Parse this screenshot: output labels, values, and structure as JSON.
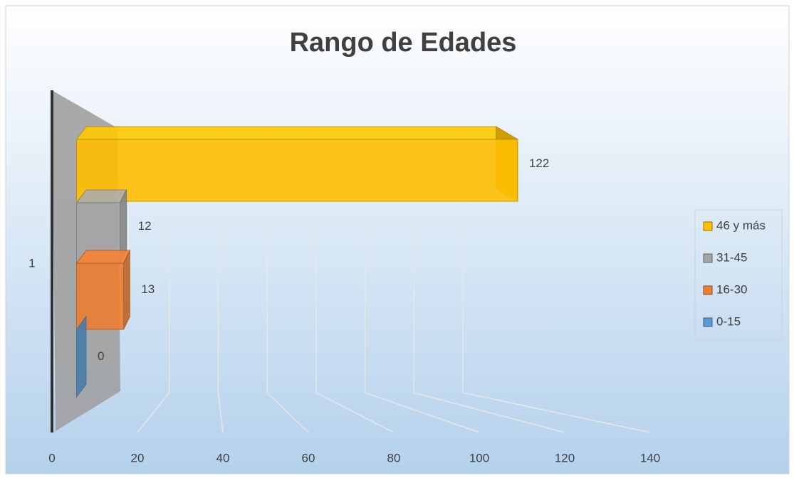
{
  "chart_data": {
    "type": "bar3d_horizontal",
    "title": "Rango de Edades",
    "categories": [
      "1"
    ],
    "series": [
      {
        "name": "0-15",
        "color": "#5b9bd5",
        "values": [
          0
        ]
      },
      {
        "name": "16-30",
        "color": "#ed7d31",
        "values": [
          13
        ]
      },
      {
        "name": "31-45",
        "color": "#a5a5a5",
        "values": [
          12
        ]
      },
      {
        "name": "46 y más",
        "color": "#ffc000",
        "values": [
          122
        ]
      }
    ],
    "xlim": [
      0,
      140
    ],
    "xticks": [
      0,
      20,
      40,
      60,
      80,
      100,
      120,
      140
    ],
    "grid": true,
    "legend": "right"
  }
}
